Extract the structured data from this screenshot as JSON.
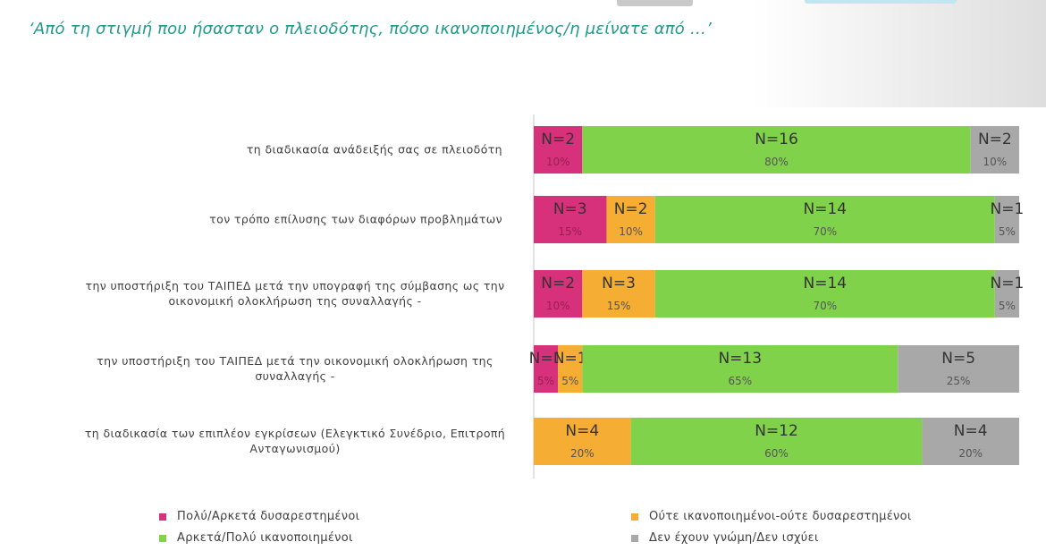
{
  "page": {
    "title": "‘Από τη στιγμή που ήσασταν ο πλειοδότης, πόσο ικανοποιημένος/η μείνατε από …’"
  },
  "chart_data": {
    "type": "bar",
    "orientation": "horizontal",
    "stacked": true,
    "percent_stacked": true,
    "categories": [
      "τη διαδικασία ανάδειξής σας σε πλειοδότη",
      "τον τρόπο επίλυσης των διαφόρων προβλημάτων",
      "την υποστήριξη του ΤΑΙΠΕΔ μετά την υπογραφή της σύμβασης ως την οικονομική ολοκλήρωση της συναλλαγής -",
      "την υποστήριξη του ΤΑΙΠΕΔ μετά την οικονομική ολοκλήρωση της συναλλαγής -",
      "τη διαδικασία των επιπλέον εγκρίσεων (Ελεγκτικό Συνέδριο, Επιτροπή Ανταγωνισμού)"
    ],
    "category_lines": [
      [
        "τη διαδικασία ανάδειξής σας σε πλειοδότη"
      ],
      [
        "τον τρόπο επίλυσης των διαφόρων προβλημάτων"
      ],
      [
        "την υποστήριξη του ΤΑΙΠΕΔ μετά την υπογραφή της σύμβασης ως την",
        "οικονομική ολοκλήρωση της συναλλαγής -"
      ],
      [
        "την υποστήριξη του ΤΑΙΠΕΔ μετά την οικονομική ολοκλήρωση της",
        "συναλλαγής -"
      ],
      [
        "τη διαδικασία των επιπλέον εγκρίσεων (Ελεγκτικό Συνέδριο, Επιτροπή",
        "Ανταγωνισμού)"
      ]
    ],
    "series": [
      {
        "name": "Πολύ/Αρκετά δυσαρεστημένοι",
        "color": "#d6317a",
        "values": [
          10,
          15,
          10,
          5,
          0
        ],
        "counts": [
          "N=2",
          "N=3",
          "N=2",
          "N=1",
          null
        ],
        "labels": [
          "10%",
          "15%",
          "10%",
          "5%",
          null
        ]
      },
      {
        "name": "Ούτε ικανοποιημένοι-ούτε δυσαρεστημένοι",
        "color": "#f5ad33",
        "values": [
          0,
          10,
          15,
          5,
          20
        ],
        "counts": [
          null,
          "N=2",
          "N=3",
          "N=1",
          "N=4"
        ],
        "labels": [
          null,
          "10%",
          "15%",
          "5%",
          "20%"
        ]
      },
      {
        "name": "Αρκετά/Πολύ ικανοποιημένοι",
        "color": "#80d24a",
        "values": [
          80,
          70,
          70,
          65,
          60
        ],
        "counts": [
          "N=16",
          "N=14",
          "N=14",
          "N=13",
          "N=12"
        ],
        "labels": [
          "80%",
          "70%",
          "70%",
          "65%",
          "60%"
        ]
      },
      {
        "name": "Δεν έχουν γνώμη/Δεν ισχύει",
        "color": "#a8a8a8",
        "values": [
          10,
          5,
          5,
          25,
          20
        ],
        "counts": [
          "N=2",
          "N=1",
          "N=1",
          "N=5",
          "N=4"
        ],
        "labels": [
          "10%",
          "5%",
          "5%",
          "25%",
          "20%"
        ]
      }
    ],
    "xlim": [
      0,
      100
    ],
    "grid": false,
    "legend_position": "bottom"
  },
  "legend": {
    "items": [
      {
        "label": "Πολύ/Αρκετά δυσαρεστημένοι",
        "color": "#d6317a"
      },
      {
        "label": "Ούτε ικανοποιημένοι-ούτε δυσαρεστημένοι",
        "color": "#f5ad33"
      },
      {
        "label": "Αρκετά/Πολύ ικανοποιημένοι",
        "color": "#80d24a"
      },
      {
        "label": "Δεν έχουν γνώμη/Δεν ισχύει",
        "color": "#a8a8a8"
      }
    ]
  }
}
